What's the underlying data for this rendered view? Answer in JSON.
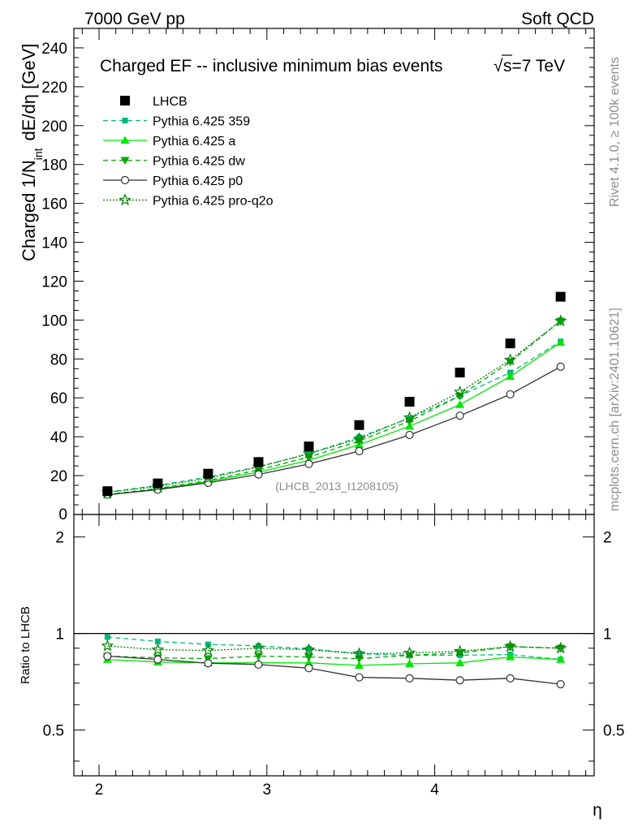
{
  "header": {
    "left": "7000 GeV pp",
    "right": "Soft QCD"
  },
  "side_labels": {
    "rivet": "Rivet 4.1.0, ≥ 100k events",
    "mcplots": "mcplots.cern.ch [arXiv:2401.10621]"
  },
  "chart_data": {
    "type": "line",
    "title": "Charged EF -- inclusive minimum bias events",
    "title_energy": "s=7 TeV",
    "sqrt_symbol": "√",
    "xlabel": "η",
    "ylabel_main": "Charged 1/N",
    "ylabel_sub": "int",
    "ylabel_units": "dE/dη [GeV]",
    "ylabel_ratio": "Ratio to LHCB",
    "watermark": "(LHCB_2013_I1208105)",
    "xlim": [
      1.85,
      4.95
    ],
    "ylim": [
      0,
      250
    ],
    "ratio_ylim": [
      0.36,
      2.35
    ],
    "x_ticks": [
      "2",
      "3",
      "4"
    ],
    "y_ticks": [
      "20",
      "40",
      "60",
      "80",
      "100",
      "120",
      "140",
      "160",
      "180",
      "200",
      "220",
      "240"
    ],
    "y_zero_tick": "0",
    "ratio_ticks": [
      "0.5",
      "1",
      "2"
    ],
    "x": [
      2.05,
      2.35,
      2.65,
      2.95,
      3.25,
      3.55,
      3.85,
      4.15,
      4.45,
      4.75
    ],
    "series": [
      {
        "name": "LHCB",
        "color": "#000000",
        "marker": "square",
        "line": "none",
        "values": [
          12,
          16,
          21,
          27,
          35,
          46,
          58,
          73,
          88,
          112
        ],
        "ratio": [
          1,
          1,
          1,
          1,
          1,
          1,
          1,
          1,
          1,
          1
        ]
      },
      {
        "name": "Pythia 6.425 359",
        "color": "#00b87a",
        "marker": "small-square",
        "line": "dashed",
        "values": [
          11.5,
          15.0,
          19.3,
          24.6,
          31.2,
          39.8,
          49.5,
          61.0,
          73.0,
          89.0
        ],
        "ratio": [
          0.975,
          0.945,
          0.925,
          0.915,
          0.895,
          0.865,
          0.855,
          0.855,
          0.86,
          0.83
        ]
      },
      {
        "name": "Pythia 6.425 a",
        "color": "#00e600",
        "marker": "triangle-up",
        "line": "solid",
        "values": [
          10.0,
          13.1,
          17.0,
          21.8,
          27.9,
          35.9,
          45.4,
          56.5,
          71.0,
          88.5
        ],
        "ratio": [
          0.83,
          0.815,
          0.81,
          0.81,
          0.81,
          0.795,
          0.805,
          0.81,
          0.845,
          0.83
        ]
      },
      {
        "name": "Pythia 6.425 dw",
        "color": "#00aa00",
        "marker": "triangle-down",
        "line": "dashed",
        "values": [
          10.3,
          13.4,
          17.5,
          22.9,
          29.5,
          37.8,
          48.0,
          61.0,
          78.5,
          99.5
        ],
        "ratio": [
          0.85,
          0.84,
          0.835,
          0.85,
          0.845,
          0.835,
          0.855,
          0.87,
          0.91,
          0.9
        ]
      },
      {
        "name": "Pythia 6.425 p0",
        "color": "#333333",
        "marker": "open-circle",
        "line": "solid",
        "values": [
          10.2,
          12.8,
          16.3,
          20.6,
          26.0,
          32.6,
          40.9,
          50.8,
          61.8,
          76.0
        ],
        "ratio": [
          0.85,
          0.83,
          0.808,
          0.8,
          0.78,
          0.73,
          0.725,
          0.715,
          0.725,
          0.695
        ]
      },
      {
        "name": "Pythia 6.425 pro-q2o",
        "color": "#008000",
        "marker": "open-star",
        "line": "dotted",
        "values": [
          11.3,
          14.5,
          18.6,
          24.5,
          31.3,
          39.0,
          49.8,
          63.0,
          79.5,
          99.5
        ],
        "ratio": [
          0.915,
          0.89,
          0.885,
          0.9,
          0.89,
          0.865,
          0.87,
          0.88,
          0.91,
          0.9
        ]
      }
    ]
  }
}
